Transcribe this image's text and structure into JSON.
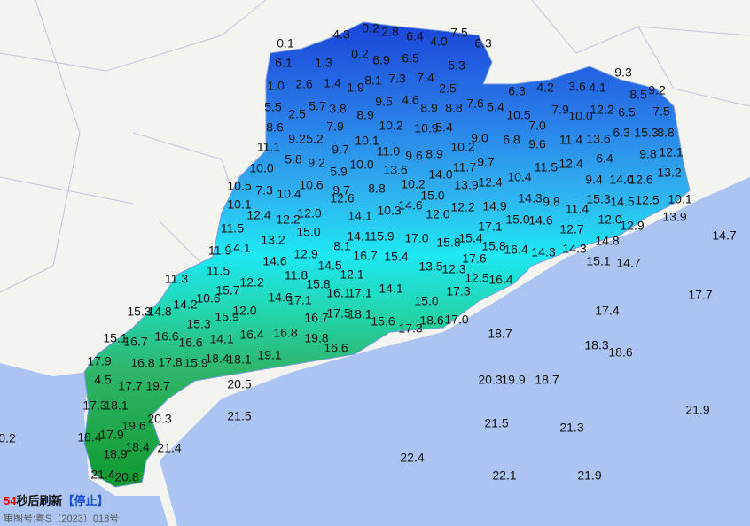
{
  "readings": [
    "0.1",
    "4.3",
    "0.2",
    "2.8",
    "6.4",
    "7.5",
    "4.0",
    "6.3",
    "6.1",
    "1.3",
    "0.2",
    "6.9",
    "6.5",
    "5.3",
    "9.3",
    "1.0",
    "2.6",
    "1.4",
    "1.9",
    "8.1",
    "7.3",
    "7.4",
    "2.5",
    "6.3",
    "4.2",
    "3.6",
    "4.1",
    "8.5",
    "9.2",
    "5.5",
    "2.5",
    "5.7",
    "3.8",
    "9.5",
    "4.6",
    "8.9",
    "8.8",
    "7.6",
    "5.4",
    "10.5",
    "7.9",
    "10.0",
    "12.2",
    "6.5",
    "7.5",
    "8.9",
    "8.6",
    "9.2",
    "5.2",
    "7.9",
    "10.2",
    "10.9",
    "5.4",
    "7.0",
    "6.3",
    "15.3",
    "8.8",
    "11.1",
    "10.1",
    "9.0",
    "6.8",
    "9.6",
    "11.4",
    "13.6",
    "10.2",
    "9.7",
    "11.0",
    "9.6",
    "8.9",
    "9.8",
    "12.1",
    "5.8",
    "9.2",
    "11.7",
    "9.7",
    "11.5",
    "12.4",
    "6.4",
    "10.0",
    "5.9",
    "10.0",
    "13.6",
    "14.0",
    "13.2",
    "9.4",
    "14.0",
    "12.6",
    "13.9",
    "12.4",
    "10.4",
    "10.5",
    "7.3",
    "10.4",
    "10.6",
    "9.7",
    "8.8",
    "10.2",
    "15.0",
    "14.3",
    "9.8",
    "15.3",
    "14.5",
    "12.5",
    "10.1",
    "10.1",
    "12.6",
    "14.6",
    "12.0",
    "12.2",
    "14.9",
    "11.4",
    "10.3",
    "12.4",
    "12.2",
    "12.0",
    "14.1",
    "15.0",
    "14.6",
    "12.0",
    "13.9",
    "17.1",
    "11.5",
    "15.0",
    "12.9",
    "12.7",
    "14.7",
    "13.2",
    "8.1",
    "14.1",
    "15.9",
    "17.0",
    "15.8",
    "15.4",
    "14.1",
    "15.8",
    "16.4",
    "14.3",
    "14.8",
    "11.9",
    "16.7",
    "14.3",
    "15.4",
    "17.6",
    "12.9",
    "14.6",
    "15.1",
    "14.7",
    "14.5",
    "11.5",
    "13.5",
    "12.3",
    "12.1",
    "12.5",
    "16.4",
    "11.8",
    "11.3",
    "15.8",
    "12.2",
    "15.7",
    "17.1",
    "14.1",
    "17.3",
    "17.7",
    "14.6",
    "17.1",
    "16.1",
    "10.6",
    "15.0",
    "14.2",
    "12.0",
    "17.4",
    "15.3",
    "14.8",
    "15.9",
    "17.5",
    "18.1",
    "15.6",
    "18.6",
    "17.0",
    "16.7",
    "15.3",
    "17.3",
    "16.4",
    "16.8",
    "18.7",
    "15.1",
    "16.7",
    "16.6",
    "16.6",
    "14.1",
    "19.8",
    "18.3",
    "16.6",
    "18.6",
    "19.1",
    "17.9",
    "16.8",
    "17.8",
    "15.9",
    "18.4",
    "18.1",
    "4.5",
    "17.7",
    "19.7",
    "20.5",
    "20.3",
    "19.9",
    "18.7",
    "17.3",
    "18.1",
    "20.3",
    "21.5",
    "21.9",
    "19.6",
    "21.5",
    "21.3",
    "18.4",
    "17.9",
    "0.2",
    "18.4",
    "21.4",
    "18.9",
    "22.4",
    "21.4",
    "20.8",
    "22.1",
    "21.9"
  ],
  "footer": {
    "countdown": "54",
    "refresh_text": "秒后刷新",
    "stop": "【停止】",
    "approval": "审图号:粤S（2023）018号"
  }
}
